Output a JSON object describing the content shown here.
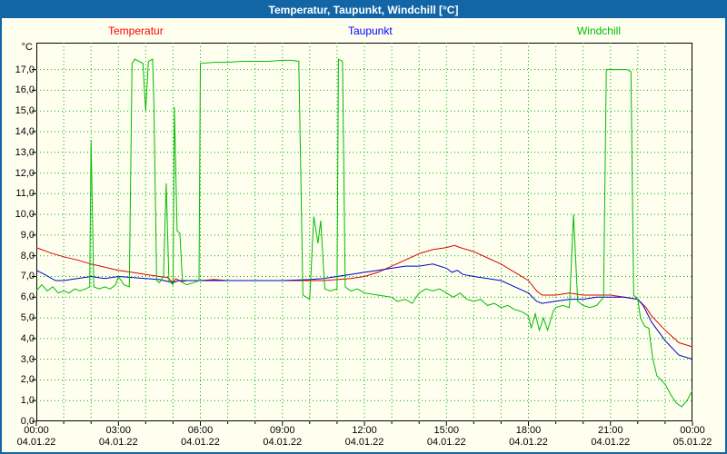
{
  "window": {
    "title": "Temperatur, Taupunkt, Windchill [°C]"
  },
  "legend": [
    {
      "label": "Temperatur",
      "color": "#ff0000"
    },
    {
      "label": "Taupunkt",
      "color": "#0000ff"
    },
    {
      "label": "Windchill",
      "color": "#00bb00"
    }
  ],
  "colors": {
    "titlebar": "#1266A6",
    "background": "#FFFFF0",
    "grid": "#00AC00",
    "axis": "#000000"
  },
  "chart_data": {
    "type": "line",
    "title": "Temperatur, Taupunkt, Windchill [°C]",
    "xlabel": "",
    "ylabel": "°C",
    "ylim": [
      0,
      18.3
    ],
    "x_hours": [
      0,
      24
    ],
    "grid": {
      "style": "dotted",
      "x_step_hours": 1,
      "y_step": 1.0,
      "color": "#00AC00"
    },
    "ytick_labels": [
      "17,0",
      "16,0",
      "15,0",
      "14,0",
      "13,0",
      "12,0",
      "11,0",
      "10,0",
      "9,0",
      "8,0",
      "7,0",
      "6,0",
      "5,0",
      "4,0",
      "3,0",
      "2,0",
      "1,0",
      "0,0"
    ],
    "xticks": [
      {
        "hour": 0,
        "time": "00:00",
        "date": "04.01.22"
      },
      {
        "hour": 3,
        "time": "03:00",
        "date": "04.01.22"
      },
      {
        "hour": 6,
        "time": "06:00",
        "date": "04.01.22"
      },
      {
        "hour": 9,
        "time": "09:00",
        "date": "04.01.22"
      },
      {
        "hour": 12,
        "time": "12:00",
        "date": "04.01.22"
      },
      {
        "hour": 15,
        "time": "15:00",
        "date": "04.01.22"
      },
      {
        "hour": 18,
        "time": "18:00",
        "date": "04.01.22"
      },
      {
        "hour": 21,
        "time": "21:00",
        "date": "04.01.22"
      },
      {
        "hour": 24,
        "time": "00:00",
        "date": "05.01.22"
      }
    ],
    "series": [
      {
        "name": "Temperatur",
        "color": "#dd0000",
        "points": [
          [
            0,
            8.4
          ],
          [
            0.5,
            8.15
          ],
          [
            1,
            7.95
          ],
          [
            1.5,
            7.8
          ],
          [
            2,
            7.6
          ],
          [
            2.5,
            7.45
          ],
          [
            3,
            7.3
          ],
          [
            3.5,
            7.2
          ],
          [
            4,
            7.1
          ],
          [
            4.5,
            7.0
          ],
          [
            4.8,
            6.95
          ],
          [
            5.0,
            6.7
          ],
          [
            5.1,
            6.9
          ],
          [
            5.3,
            6.75
          ],
          [
            5.5,
            6.8
          ],
          [
            6,
            6.8
          ],
          [
            6.5,
            6.85
          ],
          [
            7,
            6.8
          ],
          [
            7.5,
            6.8
          ],
          [
            8,
            6.8
          ],
          [
            8.5,
            6.8
          ],
          [
            9,
            6.8
          ],
          [
            9.5,
            6.8
          ],
          [
            10,
            6.8
          ],
          [
            10.5,
            6.8
          ],
          [
            11,
            6.85
          ],
          [
            11.5,
            6.9
          ],
          [
            12,
            7.0
          ],
          [
            12.5,
            7.2
          ],
          [
            13,
            7.5
          ],
          [
            13.5,
            7.8
          ],
          [
            14,
            8.1
          ],
          [
            14.5,
            8.3
          ],
          [
            15,
            8.4
          ],
          [
            15.3,
            8.5
          ],
          [
            15.5,
            8.4
          ],
          [
            16,
            8.2
          ],
          [
            16.5,
            7.9
          ],
          [
            17,
            7.6
          ],
          [
            17.5,
            7.2
          ],
          [
            18,
            6.8
          ],
          [
            18.3,
            6.3
          ],
          [
            18.5,
            6.1
          ],
          [
            19,
            6.1
          ],
          [
            19.5,
            6.2
          ],
          [
            20,
            6.1
          ],
          [
            20.5,
            6.1
          ],
          [
            21,
            6.1
          ],
          [
            21.5,
            6.0
          ],
          [
            22,
            5.9
          ],
          [
            22.3,
            5.5
          ],
          [
            22.5,
            5.1
          ],
          [
            23,
            4.4
          ],
          [
            23.5,
            3.8
          ],
          [
            24,
            3.6
          ]
        ]
      },
      {
        "name": "Taupunkt",
        "color": "#0000cc",
        "points": [
          [
            0,
            7.3
          ],
          [
            0.3,
            7.1
          ],
          [
            0.7,
            6.8
          ],
          [
            1,
            6.8
          ],
          [
            1.5,
            6.9
          ],
          [
            2,
            7.0
          ],
          [
            2.5,
            6.9
          ],
          [
            3,
            7.0
          ],
          [
            3.5,
            6.95
          ],
          [
            4,
            6.9
          ],
          [
            4.5,
            6.85
          ],
          [
            5,
            6.7
          ],
          [
            5.2,
            6.8
          ],
          [
            5.5,
            6.8
          ],
          [
            6,
            6.8
          ],
          [
            7,
            6.8
          ],
          [
            8,
            6.8
          ],
          [
            9,
            6.8
          ],
          [
            10,
            6.85
          ],
          [
            10.5,
            6.9
          ],
          [
            11,
            7.0
          ],
          [
            11.5,
            7.1
          ],
          [
            12,
            7.2
          ],
          [
            12.5,
            7.3
          ],
          [
            13,
            7.4
          ],
          [
            13.5,
            7.5
          ],
          [
            14,
            7.5
          ],
          [
            14.5,
            7.6
          ],
          [
            15,
            7.4
          ],
          [
            15.2,
            7.2
          ],
          [
            15.4,
            7.3
          ],
          [
            15.6,
            7.1
          ],
          [
            16,
            7.0
          ],
          [
            16.5,
            6.9
          ],
          [
            17,
            6.8
          ],
          [
            17.5,
            6.5
          ],
          [
            18,
            6.2
          ],
          [
            18.3,
            5.8
          ],
          [
            18.5,
            5.7
          ],
          [
            19,
            5.8
          ],
          [
            19.5,
            5.9
          ],
          [
            20,
            5.9
          ],
          [
            20.5,
            6.0
          ],
          [
            21,
            6.0
          ],
          [
            21.5,
            6.0
          ],
          [
            22,
            5.9
          ],
          [
            22.2,
            5.6
          ],
          [
            22.5,
            4.8
          ],
          [
            23,
            3.9
          ],
          [
            23.5,
            3.2
          ],
          [
            24,
            3.0
          ]
        ]
      },
      {
        "name": "Windchill",
        "color": "#00bb00",
        "points": [
          [
            0,
            6.3
          ],
          [
            0.2,
            6.6
          ],
          [
            0.4,
            6.3
          ],
          [
            0.6,
            6.5
          ],
          [
            0.8,
            6.2
          ],
          [
            1,
            6.3
          ],
          [
            1.2,
            6.2
          ],
          [
            1.4,
            6.4
          ],
          [
            1.6,
            6.3
          ],
          [
            1.8,
            6.4
          ],
          [
            1.95,
            6.5
          ],
          [
            2.0,
            13.6
          ],
          [
            2.1,
            6.5
          ],
          [
            2.3,
            6.4
          ],
          [
            2.5,
            6.5
          ],
          [
            2.7,
            6.4
          ],
          [
            2.9,
            6.6
          ],
          [
            3.0,
            7.0
          ],
          [
            3.1,
            6.8
          ],
          [
            3.2,
            6.6
          ],
          [
            3.4,
            6.5
          ],
          [
            3.5,
            17.3
          ],
          [
            3.6,
            17.5
          ],
          [
            3.75,
            17.4
          ],
          [
            3.9,
            17.3
          ],
          [
            4.0,
            15.0
          ],
          [
            4.1,
            17.4
          ],
          [
            4.25,
            17.5
          ],
          [
            4.3,
            15.2
          ],
          [
            4.4,
            6.8
          ],
          [
            4.5,
            6.7
          ],
          [
            4.65,
            7.0
          ],
          [
            4.75,
            11.5
          ],
          [
            4.85,
            6.8
          ],
          [
            5.0,
            6.6
          ],
          [
            5.05,
            15.2
          ],
          [
            5.15,
            9.2
          ],
          [
            5.25,
            9.1
          ],
          [
            5.35,
            6.7
          ],
          [
            5.5,
            6.6
          ],
          [
            5.75,
            6.7
          ],
          [
            5.95,
            6.8
          ],
          [
            6.0,
            17.3
          ],
          [
            6.5,
            17.35
          ],
          [
            7,
            17.35
          ],
          [
            7.5,
            17.4
          ],
          [
            8,
            17.4
          ],
          [
            8.5,
            17.4
          ],
          [
            9,
            17.45
          ],
          [
            9.3,
            17.45
          ],
          [
            9.6,
            17.4
          ],
          [
            9.75,
            6.1
          ],
          [
            10,
            5.9
          ],
          [
            10.15,
            9.9
          ],
          [
            10.3,
            8.6
          ],
          [
            10.4,
            9.7
          ],
          [
            10.55,
            6.4
          ],
          [
            10.75,
            6.3
          ],
          [
            11.0,
            6.4
          ],
          [
            11.05,
            17.5
          ],
          [
            11.2,
            17.4
          ],
          [
            11.3,
            6.5
          ],
          [
            11.5,
            6.3
          ],
          [
            11.75,
            6.4
          ],
          [
            12,
            6.2
          ],
          [
            12.5,
            6.1
          ],
          [
            13,
            6.0
          ],
          [
            13.2,
            5.8
          ],
          [
            13.5,
            5.9
          ],
          [
            13.75,
            5.7
          ],
          [
            14,
            6.2
          ],
          [
            14.25,
            6.4
          ],
          [
            14.5,
            6.3
          ],
          [
            14.75,
            6.4
          ],
          [
            15,
            6.2
          ],
          [
            15.25,
            6.0
          ],
          [
            15.5,
            6.2
          ],
          [
            15.75,
            5.9
          ],
          [
            16,
            5.8
          ],
          [
            16.25,
            5.9
          ],
          [
            16.5,
            5.6
          ],
          [
            16.75,
            5.7
          ],
          [
            17,
            5.5
          ],
          [
            17.25,
            5.6
          ],
          [
            17.5,
            5.4
          ],
          [
            17.75,
            5.3
          ],
          [
            18,
            5.1
          ],
          [
            18.1,
            4.5
          ],
          [
            18.25,
            5.2
          ],
          [
            18.4,
            4.4
          ],
          [
            18.55,
            5.0
          ],
          [
            18.7,
            4.4
          ],
          [
            18.9,
            5.3
          ],
          [
            19,
            5.5
          ],
          [
            19.25,
            5.6
          ],
          [
            19.5,
            5.5
          ],
          [
            19.65,
            10.0
          ],
          [
            19.8,
            5.8
          ],
          [
            20,
            5.6
          ],
          [
            20.25,
            5.5
          ],
          [
            20.5,
            5.6
          ],
          [
            20.75,
            6.0
          ],
          [
            20.85,
            17.0
          ],
          [
            21,
            17.0
          ],
          [
            21.3,
            17.0
          ],
          [
            21.6,
            17.0
          ],
          [
            21.75,
            16.9
          ],
          [
            21.85,
            6.1
          ],
          [
            22,
            5.9
          ],
          [
            22.1,
            5.0
          ],
          [
            22.25,
            4.6
          ],
          [
            22.4,
            4.5
          ],
          [
            22.55,
            3.0
          ],
          [
            22.7,
            2.2
          ],
          [
            23,
            1.8
          ],
          [
            23.2,
            1.3
          ],
          [
            23.4,
            0.9
          ],
          [
            23.6,
            0.7
          ],
          [
            23.8,
            1.0
          ],
          [
            24,
            1.5
          ]
        ]
      }
    ]
  }
}
